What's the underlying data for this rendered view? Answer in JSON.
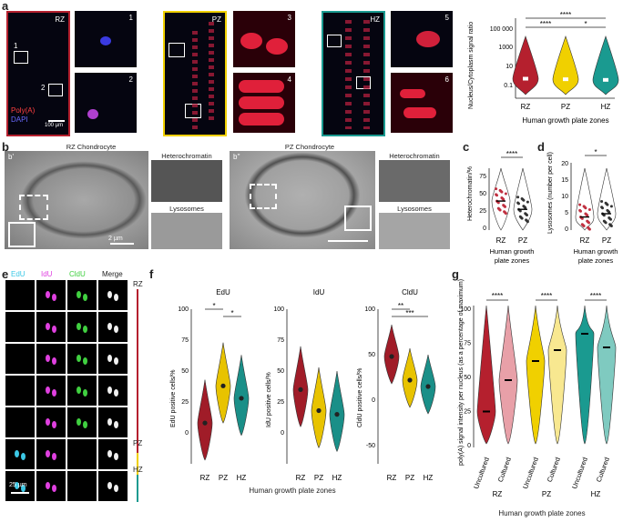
{
  "panels": {
    "a": {
      "letter": "a",
      "zone_labels": [
        "RZ",
        "PZ",
        "HZ"
      ],
      "inset_numbers": [
        "1",
        "2",
        "3",
        "4",
        "5",
        "6"
      ],
      "legend_polya": "Poly(A)",
      "legend_dapi": "DAPI",
      "scale_bar": "100 µm",
      "frame_colors": {
        "RZ": "#b5202e",
        "PZ": "#f0d000",
        "HZ": "#1a9a90"
      }
    },
    "b": {
      "letter": "b",
      "rz_title": "RZ Chondrocyte",
      "pz_title": "PZ Chondrocyte",
      "heterochromatin": "Heterochromatin",
      "lysosomes": "Lysosomes",
      "scale_bar": "2 µm",
      "sub_b1": "b'",
      "sub_b2": "b''"
    },
    "c": {
      "letter": "c"
    },
    "d": {
      "letter": "d"
    },
    "e": {
      "letter": "e",
      "headers": [
        "EdU",
        "IdU",
        "CldU",
        "Merge"
      ],
      "header_colors": [
        "#3cc8e6",
        "#e040e0",
        "#40d040",
        "#222222"
      ],
      "zone_labels": [
        "RZ",
        "PZ",
        "HZ"
      ],
      "scale_bar": "25 µm"
    },
    "f": {
      "letter": "f",
      "xlabel": "Human growth plate zones"
    },
    "g": {
      "letter": "g",
      "xlabel": "Human growth plate zones"
    }
  },
  "chart_data": [
    {
      "id": "a-violin",
      "type": "violin",
      "ylabel": "Nucleus/Cytoplasm signal ratio",
      "xlabel": "Human growth plate zones",
      "categories": [
        "RZ",
        "PZ",
        "HZ"
      ],
      "yscale": "log",
      "yticks": [
        "0.1",
        "10",
        "1000",
        "100 000"
      ],
      "medians": [
        0.8,
        0.7,
        0.6
      ],
      "colors": [
        "#b5202e",
        "#f0d000",
        "#1a9a90"
      ],
      "significance": [
        {
          "pair": [
            "RZ",
            "PZ"
          ],
          "label": "****"
        },
        {
          "pair": [
            "PZ",
            "HZ"
          ],
          "label": "*"
        },
        {
          "pair": [
            "RZ",
            "HZ"
          ],
          "label": "****"
        }
      ]
    },
    {
      "id": "c-heterochromatin",
      "type": "violin",
      "ylabel": "Heterochromatin/%",
      "xlabel": "Human growth plate zones",
      "categories": [
        "RZ",
        "PZ"
      ],
      "ylim": [
        0,
        75
      ],
      "yticks": [
        "0",
        "25",
        "50",
        "75"
      ],
      "medians": [
        42,
        30
      ],
      "colors": [
        "#c03040",
        "#333333"
      ],
      "significance": [
        {
          "pair": [
            "RZ",
            "PZ"
          ],
          "label": "****"
        }
      ]
    },
    {
      "id": "d-lysosomes",
      "type": "violin",
      "ylabel": "Lysosomes (number per cell)",
      "xlabel": "Human growth plate zones",
      "categories": [
        "RZ",
        "PZ"
      ],
      "ylim": [
        0,
        20
      ],
      "yticks": [
        "0",
        "5",
        "10",
        "15",
        "20"
      ],
      "medians": [
        4,
        5
      ],
      "colors": [
        "#c03040",
        "#333333"
      ],
      "significance": [
        {
          "pair": [
            "RZ",
            "PZ"
          ],
          "label": "*"
        }
      ]
    },
    {
      "id": "f-edu",
      "type": "violin",
      "title": "EdU",
      "ylabel": "EdU positive cells/%",
      "categories": [
        "RZ",
        "PZ",
        "HZ"
      ],
      "ylim": [
        -25,
        100
      ],
      "yticks": [
        "0",
        "25",
        "50",
        "75",
        "100"
      ],
      "medians": [
        8,
        38,
        28
      ],
      "colors": [
        "#a01c28",
        "#e8c300",
        "#1a8f88"
      ],
      "significance": [
        {
          "pair": [
            "RZ",
            "PZ"
          ],
          "label": "*"
        },
        {
          "pair": [
            "PZ",
            "HZ"
          ],
          "label": "*"
        }
      ]
    },
    {
      "id": "f-idu",
      "type": "violin",
      "title": "IdU",
      "ylabel": "IdU positive cells/%",
      "categories": [
        "RZ",
        "PZ",
        "HZ"
      ],
      "ylim": [
        -25,
        100
      ],
      "yticks": [
        "0",
        "25",
        "50",
        "75",
        "100"
      ],
      "medians": [
        35,
        18,
        15
      ],
      "colors": [
        "#a01c28",
        "#e8c300",
        "#1a8f88"
      ],
      "significance": []
    },
    {
      "id": "f-cldu",
      "type": "violin",
      "title": "CldU",
      "ylabel": "CldU positive cells/%",
      "categories": [
        "RZ",
        "PZ",
        "HZ"
      ],
      "ylim": [
        -70,
        100
      ],
      "yticks": [
        "-50",
        "0",
        "50",
        "100"
      ],
      "medians": [
        48,
        22,
        15
      ],
      "colors": [
        "#a01c28",
        "#e8c300",
        "#1a8f88"
      ],
      "significance": [
        {
          "pair": [
            "RZ",
            "PZ"
          ],
          "label": "**"
        },
        {
          "pair": [
            "RZ",
            "HZ"
          ],
          "label": "***"
        }
      ]
    },
    {
      "id": "g-polya",
      "type": "violin",
      "ylabel": "poly(A) signal intensity per nucleus (as a percentage of maximum)",
      "categories": [
        "Uncultured",
        "Cultured",
        "Uncultured",
        "Cultured",
        "Uncultured",
        "Cultured"
      ],
      "groups": [
        "RZ",
        "PZ",
        "HZ"
      ],
      "ylim": [
        0,
        100
      ],
      "yticks": [
        "0",
        "25",
        "50",
        "75",
        "100"
      ],
      "medians": [
        25,
        48,
        62,
        70,
        82,
        72
      ],
      "colors": [
        "#b5202e",
        "#e8a0a8",
        "#f0d000",
        "#f8e890",
        "#1a9a90",
        "#7fcac0"
      ],
      "significance": [
        {
          "group": "RZ",
          "label": "****"
        },
        {
          "group": "PZ",
          "label": "****"
        },
        {
          "group": "HZ",
          "label": "****"
        }
      ]
    }
  ]
}
